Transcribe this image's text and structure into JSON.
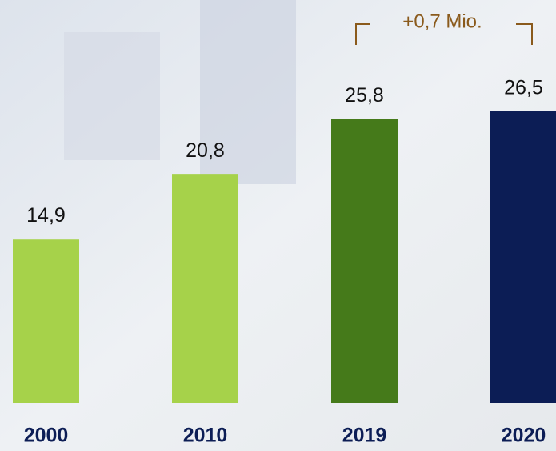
{
  "chart_data": {
    "type": "bar",
    "categories": [
      "2000",
      "2010",
      "2019",
      "2020"
    ],
    "values": [
      14.9,
      20.8,
      25.8,
      26.5
    ],
    "value_labels": [
      "14,9",
      "20,8",
      "25,8",
      "26,5"
    ],
    "colors": [
      "#a6d24a",
      "#a6d24a",
      "#457a1a",
      "#0c1d55"
    ],
    "ylim": [
      0,
      36.6
    ],
    "annotation": "+0,7 Mio."
  }
}
